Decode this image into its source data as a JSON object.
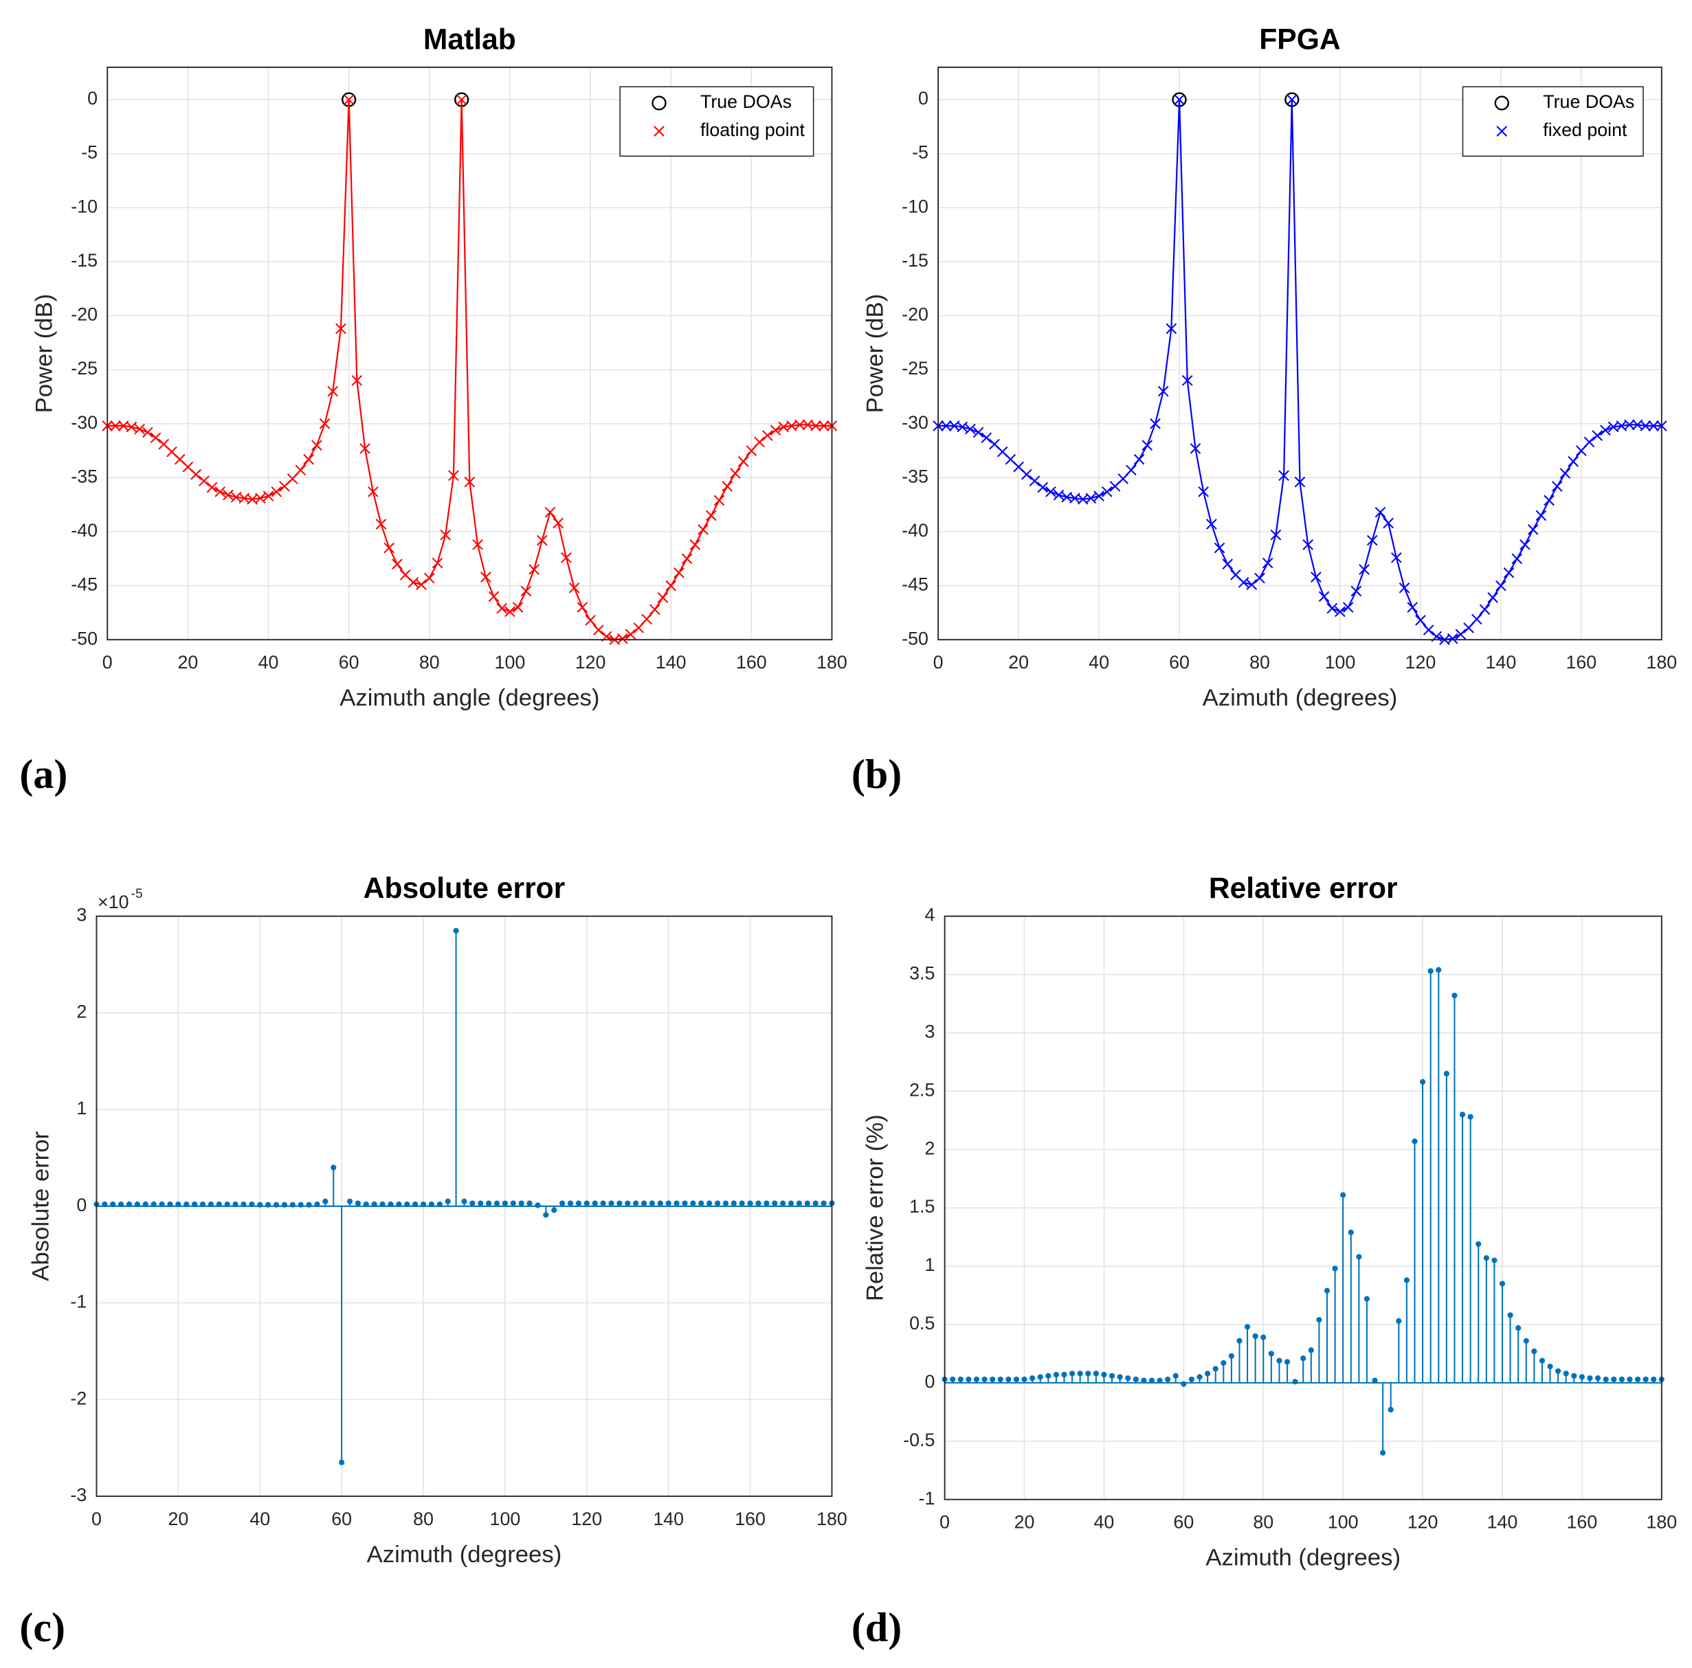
{
  "chart_data": [
    {
      "type": "line",
      "title": "Matlab",
      "xlabel": "Azimuth angle (degrees)",
      "ylabel": "Power (dB)",
      "panel_label": "(a)",
      "xlim": [
        0,
        180
      ],
      "xticks": [
        0,
        20,
        40,
        60,
        80,
        100,
        120,
        140,
        160,
        180
      ],
      "ylim": [
        -50,
        3
      ],
      "yticks": [
        -50,
        -45,
        -40,
        -35,
        -30,
        -25,
        -20,
        -15,
        -10,
        -5,
        0
      ],
      "grid": true,
      "legend": "upper right",
      "series": [
        {
          "name": "True DOAs",
          "color": "#000000",
          "marker": "o",
          "linestyle": "none",
          "x": [
            60,
            88
          ],
          "values": [
            0,
            0
          ]
        },
        {
          "name": "floating point",
          "color": "#ff0000",
          "marker": "x",
          "linestyle": "solid",
          "x": [
            0,
            2,
            4,
            6,
            8,
            10,
            12,
            14,
            16,
            18,
            20,
            22,
            24,
            26,
            28,
            30,
            32,
            34,
            36,
            38,
            40,
            42,
            44,
            46,
            48,
            50,
            52,
            54,
            56,
            58,
            60,
            62,
            64,
            66,
            68,
            70,
            72,
            74,
            76,
            78,
            80,
            82,
            84,
            86,
            88,
            90,
            92,
            94,
            96,
            98,
            100,
            102,
            104,
            106,
            108,
            110,
            112,
            114,
            116,
            118,
            120,
            122,
            124,
            126,
            128,
            130,
            132,
            134,
            136,
            138,
            140,
            142,
            144,
            146,
            148,
            150,
            152,
            154,
            156,
            158,
            160,
            162,
            164,
            166,
            168,
            170,
            172,
            174,
            176,
            178,
            180
          ],
          "values": [
            -30.2,
            -30.2,
            -30.2,
            -30.3,
            -30.5,
            -30.8,
            -31.3,
            -31.9,
            -32.6,
            -33.3,
            -34.0,
            -34.7,
            -35.3,
            -35.9,
            -36.3,
            -36.6,
            -36.8,
            -36.9,
            -37.0,
            -36.9,
            -36.7,
            -36.3,
            -35.8,
            -35.1,
            -34.3,
            -33.3,
            -32.0,
            -30.0,
            -27.0,
            -21.2,
            0,
            -26.0,
            -32.3,
            -36.3,
            -39.3,
            -41.5,
            -43.0,
            -44.0,
            -44.7,
            -44.9,
            -44.3,
            -42.9,
            -40.3,
            -34.8,
            0,
            -35.4,
            -41.2,
            -44.2,
            -46.0,
            -47.1,
            -47.4,
            -47.0,
            -45.5,
            -43.5,
            -40.8,
            -38.2,
            -39.2,
            -42.4,
            -45.2,
            -47.0,
            -48.2,
            -49.1,
            -49.7,
            -50.0,
            -49.9,
            -49.5,
            -48.9,
            -48.1,
            -47.2,
            -46.1,
            -45.0,
            -43.8,
            -42.5,
            -41.2,
            -39.8,
            -38.5,
            -37.1,
            -35.8,
            -34.6,
            -33.5,
            -32.5,
            -31.7,
            -31.1,
            -30.6,
            -30.3,
            -30.2,
            -30.1,
            -30.1,
            -30.2,
            -30.2,
            -30.2
          ]
        }
      ]
    },
    {
      "type": "line",
      "title": "FPGA",
      "xlabel": "Azimuth (degrees)",
      "ylabel": "Power (dB)",
      "panel_label": "(b)",
      "xlim": [
        0,
        180
      ],
      "xticks": [
        0,
        20,
        40,
        60,
        80,
        100,
        120,
        140,
        160,
        180
      ],
      "ylim": [
        -50,
        3
      ],
      "yticks": [
        -50,
        -45,
        -40,
        -35,
        -30,
        -25,
        -20,
        -15,
        -10,
        -5,
        0
      ],
      "grid": true,
      "legend": "upper right",
      "series": [
        {
          "name": "True DOAs",
          "color": "#000000",
          "marker": "o",
          "linestyle": "none",
          "x": [
            60,
            88
          ],
          "values": [
            0,
            0
          ]
        },
        {
          "name": "fixed point",
          "color": "#0000ff",
          "marker": "x",
          "linestyle": "solid",
          "x": [
            0,
            2,
            4,
            6,
            8,
            10,
            12,
            14,
            16,
            18,
            20,
            22,
            24,
            26,
            28,
            30,
            32,
            34,
            36,
            38,
            40,
            42,
            44,
            46,
            48,
            50,
            52,
            54,
            56,
            58,
            60,
            62,
            64,
            66,
            68,
            70,
            72,
            74,
            76,
            78,
            80,
            82,
            84,
            86,
            88,
            90,
            92,
            94,
            96,
            98,
            100,
            102,
            104,
            106,
            108,
            110,
            112,
            114,
            116,
            118,
            120,
            122,
            124,
            126,
            128,
            130,
            132,
            134,
            136,
            138,
            140,
            142,
            144,
            146,
            148,
            150,
            152,
            154,
            156,
            158,
            160,
            162,
            164,
            166,
            168,
            170,
            172,
            174,
            176,
            178,
            180
          ],
          "values": [
            -30.2,
            -30.2,
            -30.2,
            -30.3,
            -30.5,
            -30.8,
            -31.3,
            -31.9,
            -32.6,
            -33.3,
            -34.0,
            -34.7,
            -35.3,
            -35.9,
            -36.3,
            -36.6,
            -36.8,
            -36.9,
            -37.0,
            -36.9,
            -36.7,
            -36.3,
            -35.8,
            -35.1,
            -34.3,
            -33.3,
            -32.0,
            -30.0,
            -27.0,
            -21.2,
            0,
            -26.0,
            -32.3,
            -36.3,
            -39.3,
            -41.5,
            -43.0,
            -44.0,
            -44.7,
            -44.9,
            -44.3,
            -42.9,
            -40.3,
            -34.8,
            0,
            -35.4,
            -41.2,
            -44.2,
            -46.0,
            -47.1,
            -47.4,
            -47.0,
            -45.5,
            -43.5,
            -40.8,
            -38.2,
            -39.2,
            -42.4,
            -45.2,
            -47.0,
            -48.2,
            -49.1,
            -49.7,
            -50.0,
            -49.9,
            -49.5,
            -48.9,
            -48.1,
            -47.2,
            -46.1,
            -45.0,
            -43.8,
            -42.5,
            -41.2,
            -39.8,
            -38.5,
            -37.1,
            -35.8,
            -34.6,
            -33.5,
            -32.5,
            -31.7,
            -31.1,
            -30.6,
            -30.3,
            -30.2,
            -30.1,
            -30.1,
            -30.2,
            -30.2,
            -30.2
          ]
        }
      ]
    },
    {
      "type": "stem",
      "title": "Absolute error",
      "xlabel": "Azimuth (degrees)",
      "ylabel": "Absolute error",
      "panel_label": "(c)",
      "y_multiplier": "×10",
      "y_multiplier_exponent": "-5",
      "xlim": [
        0,
        180
      ],
      "xticks": [
        0,
        20,
        40,
        60,
        80,
        100,
        120,
        140,
        160,
        180
      ],
      "ylim": [
        -3,
        3
      ],
      "yticks": [
        -3,
        -2,
        -1,
        0,
        1,
        2,
        3
      ],
      "grid": true,
      "series": [
        {
          "color": "#0072bd",
          "x": [
            0,
            2,
            4,
            6,
            8,
            10,
            12,
            14,
            16,
            18,
            20,
            22,
            24,
            26,
            28,
            30,
            32,
            34,
            36,
            38,
            40,
            42,
            44,
            46,
            48,
            50,
            52,
            54,
            56,
            58,
            60,
            62,
            64,
            66,
            68,
            70,
            72,
            74,
            76,
            78,
            80,
            82,
            84,
            86,
            88,
            90,
            92,
            94,
            96,
            98,
            100,
            102,
            104,
            106,
            108,
            110,
            112,
            114,
            116,
            118,
            120,
            122,
            124,
            126,
            128,
            130,
            132,
            134,
            136,
            138,
            140,
            142,
            144,
            146,
            148,
            150,
            152,
            154,
            156,
            158,
            160,
            162,
            164,
            166,
            168,
            170,
            172,
            174,
            176,
            178,
            180
          ],
          "values": [
            0.02,
            0.02,
            0.02,
            0.02,
            0.02,
            0.02,
            0.02,
            0.02,
            0.02,
            0.02,
            0.02,
            0.02,
            0.02,
            0.02,
            0.02,
            0.02,
            0.02,
            0.02,
            0.02,
            0.02,
            0.015,
            0.015,
            0.015,
            0.015,
            0.015,
            0.015,
            0.015,
            0.02,
            0.05,
            0.4,
            -2.65,
            0.05,
            0.03,
            0.02,
            0.02,
            0.02,
            0.02,
            0.02,
            0.02,
            0.02,
            0.02,
            0.02,
            0.02,
            0.05,
            2.85,
            0.05,
            0.03,
            0.03,
            0.03,
            0.03,
            0.03,
            0.03,
            0.03,
            0.03,
            0.01,
            -0.09,
            -0.04,
            0.03,
            0.03,
            0.03,
            0.03,
            0.03,
            0.03,
            0.03,
            0.03,
            0.03,
            0.03,
            0.03,
            0.03,
            0.03,
            0.03,
            0.03,
            0.03,
            0.03,
            0.03,
            0.03,
            0.03,
            0.03,
            0.03,
            0.03,
            0.03,
            0.03,
            0.03,
            0.03,
            0.03,
            0.03,
            0.03,
            0.03,
            0.03,
            0.03,
            0.03
          ]
        }
      ]
    },
    {
      "type": "stem",
      "title": "Relative error",
      "xlabel": "Azimuth (degrees)",
      "ylabel": "Relative error (%)",
      "panel_label": "(d)",
      "xlim": [
        0,
        180
      ],
      "xticks": [
        0,
        20,
        40,
        60,
        80,
        100,
        120,
        140,
        160,
        180
      ],
      "ylim": [
        -1,
        4
      ],
      "yticks": [
        -1,
        -0.5,
        0,
        0.5,
        1,
        1.5,
        2,
        2.5,
        3,
        3.5,
        4
      ],
      "grid": true,
      "series": [
        {
          "color": "#0072bd",
          "x": [
            0,
            2,
            4,
            6,
            8,
            10,
            12,
            14,
            16,
            18,
            20,
            22,
            24,
            26,
            28,
            30,
            32,
            34,
            36,
            38,
            40,
            42,
            44,
            46,
            48,
            50,
            52,
            54,
            56,
            58,
            60,
            62,
            64,
            66,
            68,
            70,
            72,
            74,
            76,
            78,
            80,
            82,
            84,
            86,
            88,
            90,
            92,
            94,
            96,
            98,
            100,
            102,
            104,
            106,
            108,
            110,
            112,
            114,
            116,
            118,
            120,
            122,
            124,
            126,
            128,
            130,
            132,
            134,
            136,
            138,
            140,
            142,
            144,
            146,
            148,
            150,
            152,
            154,
            156,
            158,
            160,
            162,
            164,
            166,
            168,
            170,
            172,
            174,
            176,
            178,
            180
          ],
          "values": [
            0.03,
            0.03,
            0.03,
            0.03,
            0.03,
            0.03,
            0.03,
            0.03,
            0.03,
            0.03,
            0.03,
            0.04,
            0.05,
            0.06,
            0.07,
            0.07,
            0.08,
            0.08,
            0.08,
            0.08,
            0.07,
            0.06,
            0.05,
            0.04,
            0.03,
            0.02,
            0.02,
            0.02,
            0.03,
            0.06,
            -0.01,
            0.03,
            0.05,
            0.08,
            0.12,
            0.17,
            0.23,
            0.36,
            0.48,
            0.4,
            0.39,
            0.25,
            0.19,
            0.18,
            0.01,
            0.21,
            0.28,
            0.54,
            0.79,
            0.98,
            1.61,
            1.29,
            1.08,
            0.72,
            0.02,
            -0.6,
            -0.23,
            0.53,
            0.88,
            2.07,
            2.58,
            3.53,
            3.54,
            2.65,
            3.32,
            2.3,
            2.28,
            1.19,
            1.07,
            1.05,
            0.85,
            0.58,
            0.47,
            0.36,
            0.27,
            0.19,
            0.14,
            0.1,
            0.08,
            0.06,
            0.05,
            0.04,
            0.04,
            0.03,
            0.03,
            0.03,
            0.03,
            0.03,
            0.03,
            0.03,
            0.03
          ]
        }
      ]
    }
  ]
}
